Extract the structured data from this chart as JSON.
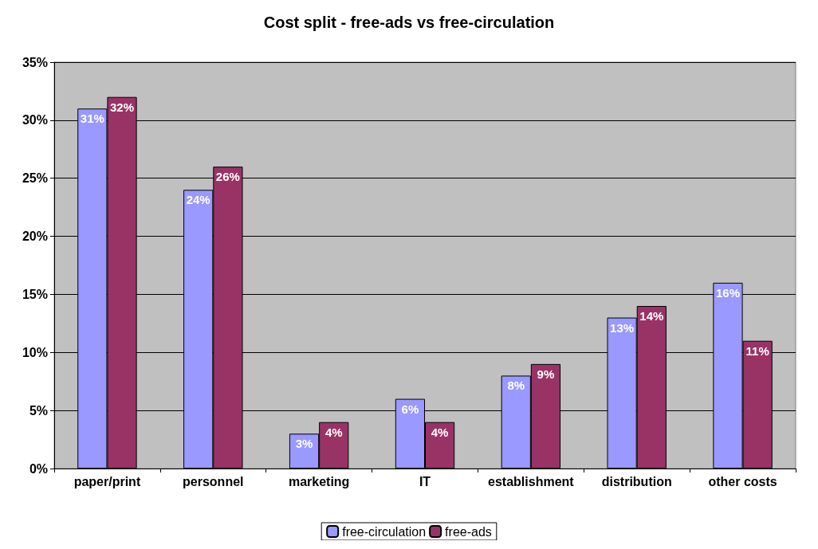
{
  "chart_data": {
    "type": "bar",
    "title": "Cost split - free-ads vs free-circulation",
    "categories": [
      "paper/print",
      "personnel",
      "marketing",
      "IT",
      "establishment",
      "distribution",
      "other costs"
    ],
    "series": [
      {
        "name": "free-circulation",
        "color": "#9999ff",
        "values": [
          31,
          24,
          3,
          6,
          8,
          13,
          16
        ],
        "value_labels": [
          "31%",
          "24%",
          "3%",
          "6%",
          "8%",
          "13%",
          "16%"
        ]
      },
      {
        "name": "free-ads",
        "color": "#993366",
        "values": [
          32,
          26,
          4,
          4,
          9,
          14,
          11
        ],
        "value_labels": [
          "32%",
          "26%",
          "4%",
          "4%",
          "9%",
          "14%",
          "11%"
        ]
      }
    ],
    "ylim": [
      0,
      35
    ],
    "yticks": [
      {
        "value": 0,
        "label": "0%"
      },
      {
        "value": 5,
        "label": "5%"
      },
      {
        "value": 10,
        "label": "10%"
      },
      {
        "value": 15,
        "label": "15%"
      },
      {
        "value": 20,
        "label": "20%"
      },
      {
        "value": 25,
        "label": "25%"
      },
      {
        "value": 30,
        "label": "30%"
      },
      {
        "value": 35,
        "label": "35%"
      }
    ],
    "grid": "y",
    "legend": "bottom"
  }
}
